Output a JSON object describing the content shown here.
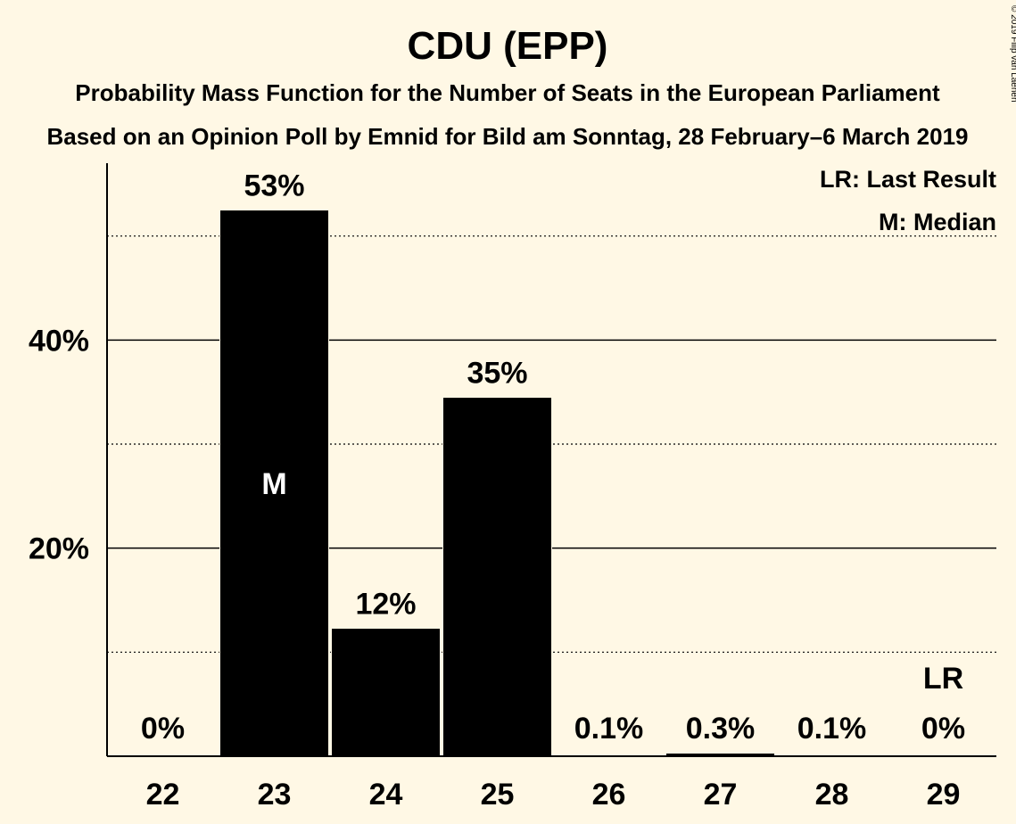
{
  "chart_data": {
    "type": "bar",
    "title": "CDU (EPP)",
    "subtitle1": "Probability Mass Function for the Number of Seats in the European Parliament",
    "subtitle2": "Based on an Opinion Poll by Emnid for Bild am Sonntag, 28 February–6 March 2019",
    "copyright": "© 2019 Filip van Laenen",
    "categories": [
      "22",
      "23",
      "24",
      "25",
      "26",
      "27",
      "28",
      "29"
    ],
    "values": [
      0,
      52.5,
      12.3,
      34.5,
      0.1,
      0.3,
      0.1,
      0
    ],
    "value_labels": [
      "0%",
      "53%",
      "12%",
      "35%",
      "0.1%",
      "0.3%",
      "0.1%",
      "0%"
    ],
    "median_index": 1,
    "median_marker": "M",
    "last_result_index": 7,
    "last_result_marker": "LR",
    "ylim": [
      0,
      57
    ],
    "y_ticks": [
      {
        "value": 20,
        "label": "20%"
      },
      {
        "value": 40,
        "label": "40%"
      }
    ],
    "y_minor_gridlines": [
      10,
      30,
      50
    ],
    "legend": {
      "position": "top-right",
      "entries": [
        "LR: Last Result",
        "M: Median"
      ]
    },
    "colors": {
      "background": "#fff8e5",
      "bar": "#000000",
      "text": "#000000"
    }
  }
}
